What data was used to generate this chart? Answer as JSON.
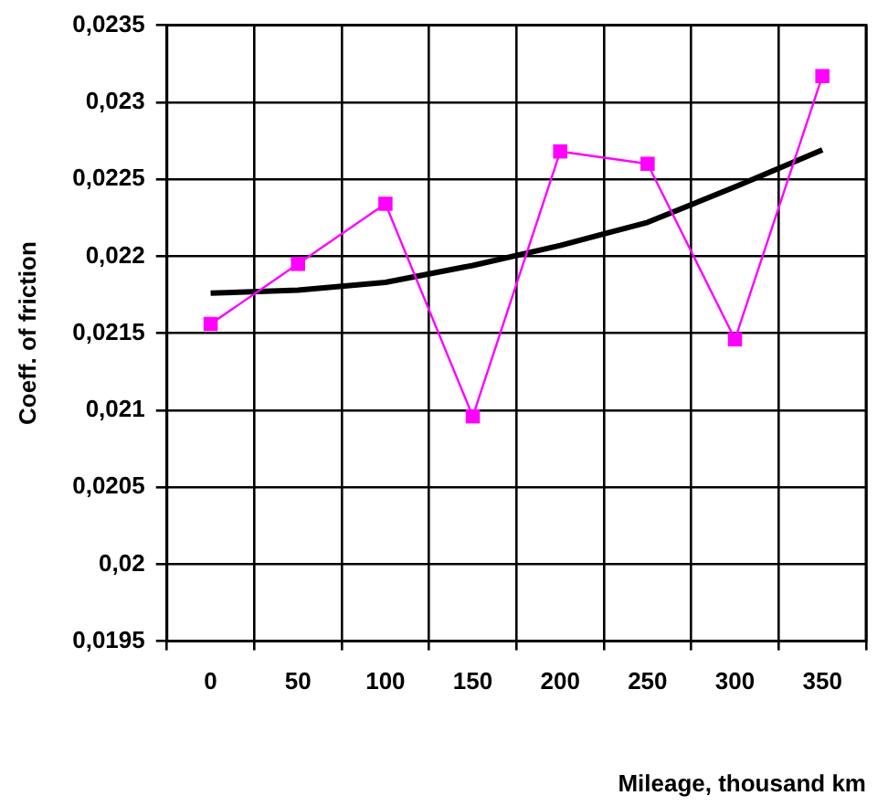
{
  "chart_data": {
    "type": "line",
    "xlabel": "Mileage, thousand km",
    "ylabel": "Coeff. of friction",
    "categories": [
      "0",
      "50",
      "100",
      "150",
      "200",
      "250",
      "300",
      "350"
    ],
    "series": [
      {
        "color": "#ff00ff",
        "marker": "square",
        "values": [
          0.02156,
          0.02195,
          0.02234,
          0.02096,
          0.02268,
          0.0226,
          0.02146,
          0.02317
        ]
      },
      {
        "color": "#000000",
        "marker": "none",
        "values": [
          0.02176,
          0.02178,
          0.02183,
          0.02194,
          0.02207,
          0.02222,
          0.02245,
          0.02269
        ]
      }
    ],
    "ylim": [
      0.0195,
      0.0235
    ],
    "yticks": [
      {
        "value": 0.0195,
        "label": "0,0195"
      },
      {
        "value": 0.02,
        "label": "0,02"
      },
      {
        "value": 0.0205,
        "label": "0,0205"
      },
      {
        "value": 0.021,
        "label": "0,021"
      },
      {
        "value": 0.0215,
        "label": "0,0215"
      },
      {
        "value": 0.022,
        "label": "0,022"
      },
      {
        "value": 0.0225,
        "label": "0,0225"
      },
      {
        "value": 0.023,
        "label": "0,023"
      },
      {
        "value": 0.0235,
        "label": "0,0235"
      }
    ],
    "grid": true,
    "legend": false
  }
}
